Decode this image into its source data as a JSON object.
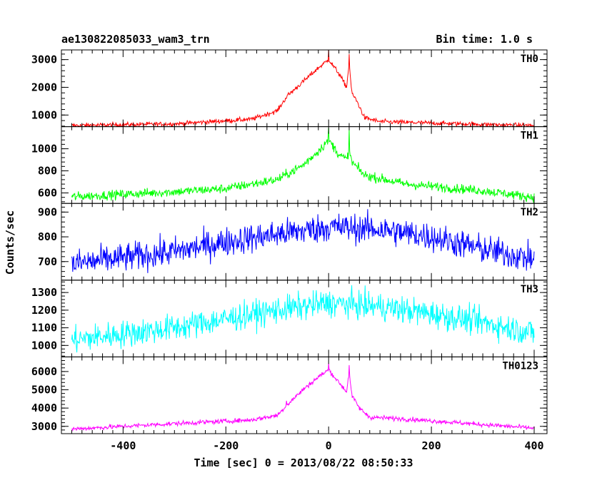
{
  "header": {
    "left_title": "ae130822085033_wam3_trn",
    "right_title": "Bin time: 1.0 s"
  },
  "chart_data": {
    "type": "line",
    "xlabel": "Time [sec] 0 = 2013/08/22 08:50:33",
    "ylabel": "Counts/sec",
    "xlim": [
      -520,
      425
    ],
    "xticks": [
      -400,
      -200,
      0,
      200,
      400
    ],
    "x_step": 1.0,
    "x_range": [
      -500,
      400
    ],
    "panels": [
      {
        "name": "TH0",
        "color": "#ff0000",
        "ylim": [
          580,
          3350
        ],
        "yticks": [
          1000,
          2000,
          3000
        ],
        "profile": [
          [
            -500,
            620
          ],
          [
            -300,
            680
          ],
          [
            -150,
            850
          ],
          [
            -100,
            1150
          ],
          [
            -80,
            1700
          ],
          [
            -50,
            2200
          ],
          [
            -20,
            2700
          ],
          [
            0,
            3000
          ],
          [
            20,
            2500
          ],
          [
            35,
            2000
          ],
          [
            40,
            2900
          ],
          [
            45,
            1800
          ],
          [
            55,
            1500
          ],
          [
            70,
            900
          ],
          [
            100,
            760
          ],
          [
            300,
            660
          ],
          [
            400,
            620
          ]
        ],
        "noise": 60,
        "peaks": [
          [
            -82,
            1600
          ],
          [
            0,
            3350
          ],
          [
            40,
            3200
          ]
        ]
      },
      {
        "name": "TH1",
        "color": "#00ff00",
        "ylim": [
          505,
          1200
        ],
        "yticks": [
          600,
          800,
          1000
        ],
        "profile": [
          [
            -500,
            565
          ],
          [
            -300,
            610
          ],
          [
            -200,
            640
          ],
          [
            -100,
            720
          ],
          [
            -50,
            850
          ],
          [
            -20,
            980
          ],
          [
            0,
            1080
          ],
          [
            20,
            950
          ],
          [
            35,
            900
          ],
          [
            40,
            1000
          ],
          [
            45,
            880
          ],
          [
            70,
            760
          ],
          [
            150,
            680
          ],
          [
            300,
            620
          ],
          [
            400,
            560
          ]
        ],
        "noise": 30,
        "peaks": [
          [
            0,
            1190
          ],
          [
            40,
            1180
          ]
        ]
      },
      {
        "name": "TH2",
        "color": "#0000ff",
        "ylim": [
          625,
          935
        ],
        "yticks": [
          700,
          800,
          900
        ],
        "profile": [
          [
            -500,
            690
          ],
          [
            -300,
            740
          ],
          [
            -200,
            780
          ],
          [
            -100,
            810
          ],
          [
            0,
            840
          ],
          [
            100,
            830
          ],
          [
            200,
            800
          ],
          [
            300,
            750
          ],
          [
            400,
            710
          ]
        ],
        "noise": 42,
        "peaks": []
      },
      {
        "name": "TH3",
        "color": "#00ffff",
        "ylim": [
          935,
          1370
        ],
        "yticks": [
          1000,
          1100,
          1200,
          1300
        ],
        "profile": [
          [
            -500,
            1030
          ],
          [
            -300,
            1100
          ],
          [
            -200,
            1150
          ],
          [
            -100,
            1200
          ],
          [
            0,
            1240
          ],
          [
            100,
            1220
          ],
          [
            200,
            1180
          ],
          [
            300,
            1130
          ],
          [
            400,
            1070
          ]
        ],
        "noise": 55,
        "peaks": []
      },
      {
        "name": "TH0123",
        "color": "#ff00ff",
        "ylim": [
          2600,
          6800
        ],
        "yticks": [
          3000,
          4000,
          5000,
          6000
        ],
        "profile": [
          [
            -500,
            2850
          ],
          [
            -300,
            3150
          ],
          [
            -150,
            3350
          ],
          [
            -100,
            3600
          ],
          [
            -80,
            4200
          ],
          [
            -50,
            5000
          ],
          [
            -20,
            5700
          ],
          [
            0,
            6100
          ],
          [
            20,
            5400
          ],
          [
            35,
            4900
          ],
          [
            40,
            6000
          ],
          [
            45,
            4700
          ],
          [
            60,
            4000
          ],
          [
            80,
            3500
          ],
          [
            150,
            3400
          ],
          [
            300,
            3100
          ],
          [
            400,
            2900
          ]
        ],
        "noise": 90,
        "peaks": [
          [
            -82,
            4400
          ],
          [
            0,
            6450
          ],
          [
            40,
            6350
          ]
        ]
      }
    ]
  }
}
